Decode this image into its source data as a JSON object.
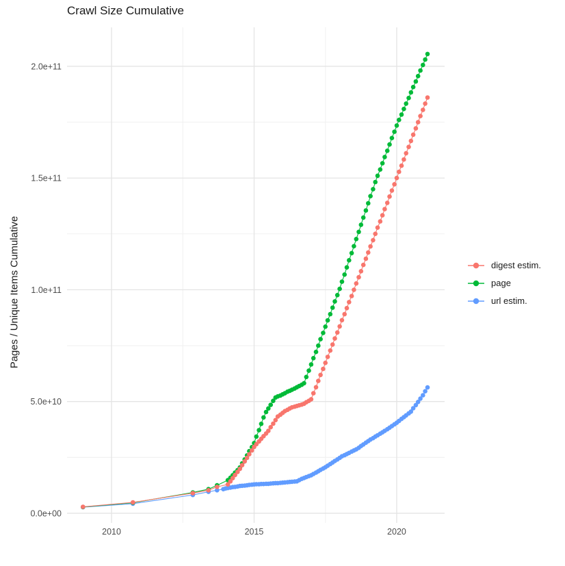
{
  "chart_data": {
    "type": "scatter",
    "title": "Crawl Size Cumulative",
    "xlabel": "",
    "ylabel": "Pages / Unique Items Cumulative",
    "values_unit": "billions (1e9 pages / items)",
    "grid": "on",
    "axes": {
      "x": {
        "range": [
          2008.44,
          2021.68
        ],
        "major_ticks": [
          {
            "value": 2010,
            "label": "2010"
          },
          {
            "value": 2015,
            "label": "2015"
          },
          {
            "value": 2020,
            "label": "2020"
          }
        ],
        "minor_ticks": [
          2012.5,
          2017.5
        ]
      },
      "y": {
        "range_billions": [
          -4.3,
          217.4
        ],
        "major_ticks": [
          {
            "value": 0,
            "label": "0.0e+00"
          },
          {
            "value": 50,
            "label": "5.0e+10"
          },
          {
            "value": 100,
            "label": "1.0e+11"
          },
          {
            "value": 150,
            "label": "1.5e+11"
          },
          {
            "value": 200,
            "label": "2.0e+11"
          }
        ],
        "minor_ticks": [
          25,
          75,
          125,
          175
        ]
      }
    },
    "legend": {
      "position": "right",
      "entries": [
        {
          "label": "digest estim.",
          "color": "#F8766D"
        },
        {
          "label": "page",
          "color": "#00BA38"
        },
        {
          "label": "url estim.",
          "color": "#619CFF"
        }
      ]
    },
    "colors": {
      "digest": "#F8766D",
      "page": "#00BA38",
      "url": "#619CFF",
      "grid_major": "#E4E4E4",
      "grid_minor": "#F1F1F1",
      "tick_label": "#4D4D4D",
      "text": "#1A1A1A"
    },
    "series": [
      {
        "name": "url estim.",
        "color": "#619CFF",
        "points": [
          [
            2009.0,
            2.7
          ],
          [
            2010.75,
            4.3
          ],
          [
            2012.85,
            8.2
          ],
          [
            2013.4,
            9.6
          ],
          [
            2013.7,
            10.3
          ],
          [
            2013.92,
            10.8
          ],
          [
            2014.0,
            11.1
          ],
          [
            2014.08,
            11.3
          ],
          [
            2014.17,
            11.5
          ],
          [
            2014.25,
            11.7
          ],
          [
            2014.33,
            11.8
          ],
          [
            2014.42,
            12.0
          ],
          [
            2014.5,
            12.2
          ],
          [
            2014.58,
            12.3
          ],
          [
            2014.67,
            12.4
          ],
          [
            2014.75,
            12.5
          ],
          [
            2014.83,
            12.7
          ],
          [
            2014.92,
            12.8
          ],
          [
            2015.0,
            12.9
          ],
          [
            2015.08,
            13.0
          ],
          [
            2015.17,
            13.0
          ],
          [
            2015.25,
            13.1
          ],
          [
            2015.33,
            13.1
          ],
          [
            2015.42,
            13.2
          ],
          [
            2015.5,
            13.2
          ],
          [
            2015.58,
            13.3
          ],
          [
            2015.67,
            13.4
          ],
          [
            2015.75,
            13.5
          ],
          [
            2015.83,
            13.5
          ],
          [
            2015.92,
            13.6
          ],
          [
            2016.0,
            13.7
          ],
          [
            2016.08,
            13.8
          ],
          [
            2016.17,
            13.9
          ],
          [
            2016.25,
            14.0
          ],
          [
            2016.33,
            14.1
          ],
          [
            2016.42,
            14.2
          ],
          [
            2016.5,
            14.3
          ],
          [
            2016.58,
            14.8
          ],
          [
            2016.67,
            15.4
          ],
          [
            2016.75,
            15.8
          ],
          [
            2016.83,
            16.2
          ],
          [
            2016.92,
            16.6
          ],
          [
            2017.0,
            17.0
          ],
          [
            2017.08,
            17.6
          ],
          [
            2017.17,
            18.2
          ],
          [
            2017.25,
            18.8
          ],
          [
            2017.33,
            19.4
          ],
          [
            2017.42,
            20.0
          ],
          [
            2017.5,
            20.6
          ],
          [
            2017.58,
            21.3
          ],
          [
            2017.67,
            22.0
          ],
          [
            2017.75,
            22.7
          ],
          [
            2017.83,
            23.4
          ],
          [
            2017.92,
            24.1
          ],
          [
            2018.0,
            24.8
          ],
          [
            2018.08,
            25.5
          ],
          [
            2018.17,
            26.0
          ],
          [
            2018.25,
            26.5
          ],
          [
            2018.33,
            27.0
          ],
          [
            2018.42,
            27.6
          ],
          [
            2018.5,
            28.1
          ],
          [
            2018.58,
            28.6
          ],
          [
            2018.67,
            29.3
          ],
          [
            2018.75,
            30.1
          ],
          [
            2018.83,
            30.8
          ],
          [
            2018.92,
            31.6
          ],
          [
            2019.0,
            32.3
          ],
          [
            2019.08,
            33.0
          ],
          [
            2019.17,
            33.6
          ],
          [
            2019.25,
            34.3
          ],
          [
            2019.33,
            34.9
          ],
          [
            2019.42,
            35.6
          ],
          [
            2019.5,
            36.2
          ],
          [
            2019.58,
            36.9
          ],
          [
            2019.67,
            37.6
          ],
          [
            2019.75,
            38.3
          ],
          [
            2019.83,
            39.0
          ],
          [
            2019.92,
            39.8
          ],
          [
            2020.0,
            40.5
          ],
          [
            2020.08,
            41.3
          ],
          [
            2020.17,
            42.2
          ],
          [
            2020.25,
            43.0
          ],
          [
            2020.33,
            43.8
          ],
          [
            2020.42,
            44.7
          ],
          [
            2020.5,
            45.5
          ],
          [
            2020.58,
            47.0
          ],
          [
            2020.67,
            48.4
          ],
          [
            2020.75,
            49.8
          ],
          [
            2020.83,
            51.3
          ],
          [
            2020.92,
            52.8
          ],
          [
            2021.0,
            54.6
          ],
          [
            2021.08,
            56.3
          ]
        ]
      },
      {
        "name": "page",
        "color": "#00BA38",
        "points": [
          [
            2009.0,
            2.8
          ],
          [
            2010.75,
            4.7
          ],
          [
            2012.85,
            9.3
          ],
          [
            2013.4,
            10.8
          ],
          [
            2013.7,
            12.5
          ],
          [
            2014.08,
            14.8
          ],
          [
            2014.17,
            15.9
          ],
          [
            2014.25,
            17.0
          ],
          [
            2014.33,
            18.2
          ],
          [
            2014.42,
            19.3
          ],
          [
            2014.5,
            20.5
          ],
          [
            2014.58,
            22.3
          ],
          [
            2014.67,
            24.1
          ],
          [
            2014.75,
            25.9
          ],
          [
            2014.83,
            27.8
          ],
          [
            2014.92,
            29.6
          ],
          [
            2015.0,
            31.4
          ],
          [
            2015.08,
            34.3
          ],
          [
            2015.17,
            37.2
          ],
          [
            2015.25,
            40.0
          ],
          [
            2015.33,
            42.9
          ],
          [
            2015.42,
            45.3
          ],
          [
            2015.5,
            46.9
          ],
          [
            2015.58,
            48.5
          ],
          [
            2015.67,
            50.3
          ],
          [
            2015.75,
            51.8
          ],
          [
            2015.83,
            52.3
          ],
          [
            2015.92,
            52.7
          ],
          [
            2016.0,
            53.2
          ],
          [
            2016.08,
            53.7
          ],
          [
            2016.17,
            54.4
          ],
          [
            2016.25,
            54.8
          ],
          [
            2016.33,
            55.3
          ],
          [
            2016.42,
            55.8
          ],
          [
            2016.5,
            56.4
          ],
          [
            2016.58,
            56.9
          ],
          [
            2016.67,
            57.5
          ],
          [
            2016.75,
            58.2
          ],
          [
            2016.83,
            61.0
          ],
          [
            2016.92,
            63.8
          ],
          [
            2017.0,
            66.6
          ],
          [
            2017.08,
            69.4
          ],
          [
            2017.17,
            72.2
          ],
          [
            2017.25,
            75.0
          ],
          [
            2017.33,
            77.9
          ],
          [
            2017.42,
            80.7
          ],
          [
            2017.5,
            83.5
          ],
          [
            2017.58,
            86.3
          ],
          [
            2017.67,
            89.1
          ],
          [
            2017.75,
            92.0
          ],
          [
            2017.83,
            94.8
          ],
          [
            2017.92,
            97.6
          ],
          [
            2018.0,
            100.4
          ],
          [
            2018.08,
            103.6
          ],
          [
            2018.17,
            106.8
          ],
          [
            2018.25,
            110.0
          ],
          [
            2018.33,
            113.2
          ],
          [
            2018.42,
            116.4
          ],
          [
            2018.5,
            119.5
          ],
          [
            2018.58,
            122.7
          ],
          [
            2018.67,
            125.9
          ],
          [
            2018.75,
            129.1
          ],
          [
            2018.83,
            132.3
          ],
          [
            2018.92,
            135.5
          ],
          [
            2019.0,
            138.7
          ],
          [
            2019.08,
            141.9
          ],
          [
            2019.17,
            145.0
          ],
          [
            2019.25,
            148.2
          ],
          [
            2019.33,
            151.0
          ],
          [
            2019.42,
            153.8
          ],
          [
            2019.5,
            156.6
          ],
          [
            2019.58,
            159.4
          ],
          [
            2019.67,
            162.2
          ],
          [
            2019.75,
            165.0
          ],
          [
            2019.83,
            167.9
          ],
          [
            2019.92,
            170.7
          ],
          [
            2020.0,
            173.5
          ],
          [
            2020.08,
            176.0
          ],
          [
            2020.17,
            178.4
          ],
          [
            2020.25,
            180.9
          ],
          [
            2020.33,
            183.3
          ],
          [
            2020.42,
            185.8
          ],
          [
            2020.5,
            188.3
          ],
          [
            2020.58,
            190.7
          ],
          [
            2020.67,
            193.2
          ],
          [
            2020.75,
            195.6
          ],
          [
            2020.83,
            198.1
          ],
          [
            2020.92,
            200.6
          ],
          [
            2021.0,
            203.0
          ],
          [
            2021.08,
            205.5
          ]
        ]
      },
      {
        "name": "digest estim.",
        "color": "#F8766D",
        "points": [
          [
            2009.0,
            2.9
          ],
          [
            2010.75,
            4.9
          ],
          [
            2012.85,
            9.0
          ],
          [
            2013.4,
            10.3
          ],
          [
            2013.7,
            11.8
          ],
          [
            2014.08,
            12.9
          ],
          [
            2014.17,
            14.3
          ],
          [
            2014.25,
            15.7
          ],
          [
            2014.33,
            17.1
          ],
          [
            2014.42,
            18.5
          ],
          [
            2014.5,
            19.9
          ],
          [
            2014.58,
            21.5
          ],
          [
            2014.67,
            23.2
          ],
          [
            2014.75,
            24.8
          ],
          [
            2014.83,
            26.4
          ],
          [
            2014.92,
            28.1
          ],
          [
            2015.0,
            29.7
          ],
          [
            2015.08,
            30.9
          ],
          [
            2015.17,
            32.1
          ],
          [
            2015.25,
            33.3
          ],
          [
            2015.33,
            34.5
          ],
          [
            2015.42,
            35.7
          ],
          [
            2015.5,
            36.9
          ],
          [
            2015.58,
            38.5
          ],
          [
            2015.67,
            40.1
          ],
          [
            2015.75,
            41.7
          ],
          [
            2015.83,
            43.3
          ],
          [
            2015.92,
            44.1
          ],
          [
            2016.0,
            44.9
          ],
          [
            2016.08,
            45.7
          ],
          [
            2016.17,
            46.3
          ],
          [
            2016.25,
            46.9
          ],
          [
            2016.33,
            47.4
          ],
          [
            2016.42,
            47.7
          ],
          [
            2016.5,
            48.0
          ],
          [
            2016.58,
            48.3
          ],
          [
            2016.67,
            48.6
          ],
          [
            2016.75,
            49.0
          ],
          [
            2016.83,
            49.7
          ],
          [
            2016.92,
            50.3
          ],
          [
            2017.0,
            51.0
          ],
          [
            2017.08,
            53.7
          ],
          [
            2017.17,
            56.4
          ],
          [
            2017.25,
            59.2
          ],
          [
            2017.33,
            61.9
          ],
          [
            2017.42,
            64.6
          ],
          [
            2017.5,
            67.3
          ],
          [
            2017.58,
            70.0
          ],
          [
            2017.67,
            72.8
          ],
          [
            2017.75,
            75.5
          ],
          [
            2017.83,
            78.2
          ],
          [
            2017.92,
            80.9
          ],
          [
            2018.0,
            83.6
          ],
          [
            2018.08,
            86.4
          ],
          [
            2018.17,
            89.1
          ],
          [
            2018.25,
            91.8
          ],
          [
            2018.33,
            94.5
          ],
          [
            2018.42,
            97.2
          ],
          [
            2018.5,
            100.0
          ],
          [
            2018.58,
            102.8
          ],
          [
            2018.67,
            105.6
          ],
          [
            2018.75,
            108.3
          ],
          [
            2018.83,
            111.1
          ],
          [
            2018.92,
            113.9
          ],
          [
            2019.0,
            116.7
          ],
          [
            2019.08,
            119.4
          ],
          [
            2019.17,
            122.2
          ],
          [
            2019.25,
            125.0
          ],
          [
            2019.33,
            127.8
          ],
          [
            2019.42,
            130.6
          ],
          [
            2019.5,
            133.3
          ],
          [
            2019.58,
            136.1
          ],
          [
            2019.67,
            138.9
          ],
          [
            2019.75,
            141.7
          ],
          [
            2019.83,
            144.4
          ],
          [
            2019.92,
            147.2
          ],
          [
            2020.0,
            150.0
          ],
          [
            2020.08,
            152.8
          ],
          [
            2020.17,
            155.5
          ],
          [
            2020.25,
            158.3
          ],
          [
            2020.33,
            161.1
          ],
          [
            2020.42,
            163.9
          ],
          [
            2020.5,
            166.6
          ],
          [
            2020.58,
            169.4
          ],
          [
            2020.67,
            172.2
          ],
          [
            2020.75,
            175.0
          ],
          [
            2020.83,
            177.7
          ],
          [
            2020.92,
            180.5
          ],
          [
            2021.0,
            183.3
          ],
          [
            2021.08,
            186.0
          ]
        ]
      }
    ]
  }
}
